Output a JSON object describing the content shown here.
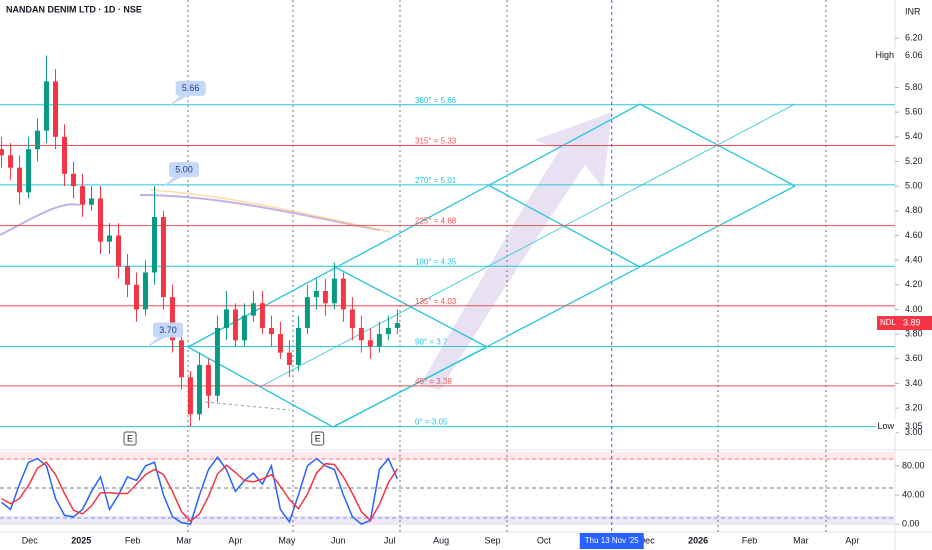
{
  "chart_data": [
    {
      "type": "candlestick",
      "title": "NANDAN DENIM LTD · 1D · NSE",
      "currency": "INR",
      "x": [
        -0.55,
        -0.375,
        -0.2,
        -0.025,
        0.15,
        0.325,
        0.5,
        0.675,
        0.85,
        1.025,
        1.2,
        1.375,
        1.55,
        1.725,
        1.9,
        2.075,
        2.25,
        2.425,
        2.6,
        2.775,
        2.95,
        3.125,
        3.3,
        3.475,
        3.65,
        3.825,
        4.0,
        4.175,
        4.35,
        4.525,
        4.7,
        4.875,
        5.05,
        5.225,
        5.4,
        5.575,
        5.75,
        5.925,
        6.1,
        6.275,
        6.45,
        6.625,
        6.8,
        6.975,
        7.15
      ],
      "open": [
        5.3,
        5.25,
        5.15,
        4.95,
        5.3,
        5.45,
        5.85,
        5.4,
        5.1,
        5.0,
        4.85,
        4.9,
        4.55,
        4.6,
        4.35,
        4.2,
        4.0,
        4.3,
        4.75,
        4.1,
        3.75,
        3.45,
        3.15,
        3.55,
        3.3,
        3.85,
        4.0,
        3.75,
        3.95,
        4.05,
        3.85,
        3.8,
        3.65,
        3.55,
        3.85,
        4.1,
        4.15,
        4.05,
        4.25,
        4.0,
        3.85,
        3.75,
        3.7,
        3.8,
        3.85
      ],
      "high": [
        5.4,
        5.35,
        5.25,
        5.4,
        5.55,
        6.06,
        5.95,
        5.5,
        5.2,
        5.1,
        5.0,
        5.0,
        4.7,
        4.7,
        4.45,
        4.3,
        4.4,
        5.0,
        4.8,
        4.2,
        3.85,
        3.5,
        3.65,
        3.6,
        3.95,
        4.15,
        4.05,
        4.05,
        4.15,
        4.15,
        3.95,
        3.9,
        3.75,
        3.95,
        4.2,
        4.25,
        4.25,
        4.38,
        4.3,
        4.1,
        3.95,
        3.85,
        3.9,
        3.95,
        4.0
      ],
      "low": [
        5.15,
        5.05,
        4.85,
        4.9,
        5.2,
        5.35,
        5.3,
        5.0,
        4.9,
        4.75,
        4.8,
        4.45,
        4.45,
        4.25,
        4.1,
        3.9,
        3.95,
        4.2,
        4.0,
        3.65,
        3.35,
        3.05,
        3.1,
        3.2,
        3.25,
        3.75,
        3.7,
        3.7,
        3.9,
        3.8,
        3.7,
        3.6,
        3.45,
        3.5,
        3.8,
        4.0,
        3.95,
        4.0,
        3.9,
        3.75,
        3.65,
        3.6,
        3.65,
        3.75,
        3.8
      ],
      "close": [
        5.25,
        5.15,
        4.95,
        5.3,
        5.45,
        5.85,
        5.4,
        5.1,
        5.0,
        4.85,
        4.9,
        4.55,
        4.6,
        4.35,
        4.2,
        4.0,
        4.3,
        4.75,
        4.1,
        3.75,
        3.45,
        3.15,
        3.55,
        3.3,
        3.85,
        4.0,
        3.75,
        3.95,
        4.05,
        3.85,
        3.8,
        3.65,
        3.55,
        3.85,
        4.1,
        4.15,
        4.05,
        4.25,
        4.0,
        3.85,
        3.75,
        3.7,
        3.8,
        3.85,
        3.89
      ],
      "up_color": "#089981",
      "down_color": "#f23645",
      "xlim": [
        -0.58,
        16.83
      ],
      "xticks": [
        {
          "value": 0,
          "label": "Dec"
        },
        {
          "value": 1,
          "label": "2025"
        },
        {
          "value": 2,
          "label": "Feb"
        },
        {
          "value": 3,
          "label": "Mar"
        },
        {
          "value": 4,
          "label": "Apr"
        },
        {
          "value": 5,
          "label": "May"
        },
        {
          "value": 6,
          "label": "Jun"
        },
        {
          "value": 7,
          "label": "Jul"
        },
        {
          "value": 8,
          "label": "Aug"
        },
        {
          "value": 9,
          "label": "Sep"
        },
        {
          "value": 10,
          "label": "Oct"
        },
        {
          "value": 12,
          "label": "Dec"
        },
        {
          "value": 13,
          "label": "2026"
        },
        {
          "value": 14,
          "label": "Feb"
        },
        {
          "value": 15,
          "label": "Mar"
        },
        {
          "value": 16,
          "label": "Apr"
        }
      ],
      "ylim": [
        2.86,
        6.51
      ],
      "yticks": [
        {
          "value": 3,
          "label": "3.00"
        },
        {
          "value": 3.2,
          "label": "3.20"
        },
        {
          "value": 3.4,
          "label": "3.40"
        },
        {
          "value": 3.6,
          "label": "3.60"
        },
        {
          "value": 3.8,
          "label": "3.80"
        },
        {
          "value": 4,
          "label": "4.00"
        },
        {
          "value": 4.2,
          "label": "4.20"
        },
        {
          "value": 4.4,
          "label": "4.40"
        },
        {
          "value": 4.6,
          "label": "4.60"
        },
        {
          "value": 4.8,
          "label": "4.80"
        },
        {
          "value": 5,
          "label": "5.00"
        },
        {
          "value": 5.2,
          "label": "5.20"
        },
        {
          "value": 5.4,
          "label": "5.40"
        },
        {
          "value": 5.6,
          "label": "5.60"
        },
        {
          "value": 5.8,
          "label": "5.80"
        },
        {
          "value": 6.2,
          "label": "6.20"
        }
      ],
      "levels": [
        {
          "label": "360° = 5.66",
          "value": 5.66,
          "color": "#26c6da"
        },
        {
          "label": "315° = 5.33",
          "value": 5.33,
          "color": "#ef5350"
        },
        {
          "label": "270° = 5.01",
          "value": 5.01,
          "color": "#26c6da"
        },
        {
          "label": "225° = 4.68",
          "value": 4.68,
          "color": "#ef5350"
        },
        {
          "label": "180° = 4.35",
          "value": 4.35,
          "color": "#26c6da"
        },
        {
          "label": "135° = 4.03",
          "value": 4.03,
          "color": "#ef5350"
        },
        {
          "label": "90° = 3.7",
          "value": 3.7,
          "color": "#26c6da"
        },
        {
          "label": "45° = 3.38",
          "value": 3.38,
          "color": "#ef5350"
        },
        {
          "label": "0° = 3.05",
          "value": 3.05,
          "color": "#26c6da"
        }
      ],
      "high_marker": {
        "name": "High",
        "value": {
          "value": 6.06,
          "label": "6.06"
        }
      },
      "low_marker": {
        "name": "Low",
        "value": {
          "value": 3.05,
          "label": "3.05"
        }
      },
      "last_price": {
        "name": "NDL",
        "value": 3.89,
        "color": "#f23645"
      },
      "callouts": [
        {
          "x": 3.11,
          "value": {
            "value": 5.66,
            "label": "5.66"
          }
        },
        {
          "x": 2.98,
          "value": {
            "value": 5,
            "label": "5.00"
          }
        },
        {
          "x": 2.67,
          "value": {
            "value": 3.7,
            "label": "3.70"
          }
        }
      ],
      "events": [
        {
          "x": 1.95,
          "label": "E"
        },
        {
          "x": 5.6,
          "label": "E"
        }
      ],
      "crosshair": {
        "x": 11.32,
        "label": "Thu 13 Nov '25"
      }
    },
    {
      "type": "line",
      "x": [
        -0.55,
        -0.375,
        -0.2,
        -0.025,
        0.15,
        0.325,
        0.5,
        0.675,
        0.85,
        1.025,
        1.2,
        1.375,
        1.55,
        1.725,
        1.9,
        2.075,
        2.25,
        2.425,
        2.6,
        2.775,
        2.95,
        3.125,
        3.3,
        3.475,
        3.65,
        3.825,
        4.0,
        4.175,
        4.35,
        4.525,
        4.7,
        4.875,
        5.05,
        5.225,
        5.4,
        5.575,
        5.75,
        5.925,
        6.1,
        6.275,
        6.45,
        6.625,
        6.8,
        6.975,
        7.15
      ],
      "series": [
        {
          "color": "#2962ff",
          "values": [
            30,
            20,
            55,
            85,
            90,
            80,
            35,
            12,
            10,
            20,
            45,
            65,
            20,
            40,
            65,
            60,
            80,
            85,
            40,
            10,
            2,
            0,
            40,
            75,
            92,
            75,
            45,
            60,
            70,
            55,
            80,
            20,
            3,
            40,
            80,
            90,
            80,
            75,
            40,
            10,
            0,
            5,
            75,
            90,
            62
          ]
        },
        {
          "color": "#f23645",
          "values": [
            35,
            28,
            35,
            53,
            77,
            85,
            68,
            42,
            19,
            14,
            25,
            43,
            43,
            42,
            42,
            55,
            68,
            75,
            68,
            45,
            17,
            4,
            14,
            38,
            69,
            81,
            71,
            60,
            58,
            62,
            68,
            52,
            34,
            21,
            41,
            70,
            83,
            82,
            65,
            42,
            17,
            5,
            27,
            57,
            76
          ]
        }
      ],
      "ylim": [
        -15,
        95
      ],
      "yticks": [
        {
          "value": 0,
          "label": "0.00"
        },
        {
          "value": 40,
          "label": "40.00"
        },
        {
          "value": 80,
          "label": "80.00"
        }
      ]
    }
  ]
}
